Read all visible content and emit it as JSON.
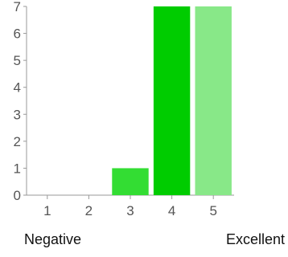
{
  "chart_data": {
    "type": "bar",
    "categories": [
      "1",
      "2",
      "3",
      "4",
      "5"
    ],
    "values": [
      0,
      0,
      1,
      7,
      7
    ],
    "colors": [
      "#28c828",
      "#28c828",
      "#33dd33",
      "#00cc00",
      "#88e888"
    ],
    "ylim": [
      0,
      7
    ],
    "yticks": [
      0,
      1,
      2,
      3,
      4,
      5,
      6,
      7
    ],
    "grid": false,
    "title": "",
    "xlabel": "",
    "ylabel": ""
  },
  "scale_labels": {
    "low": "Negative",
    "high": "Excellent"
  }
}
